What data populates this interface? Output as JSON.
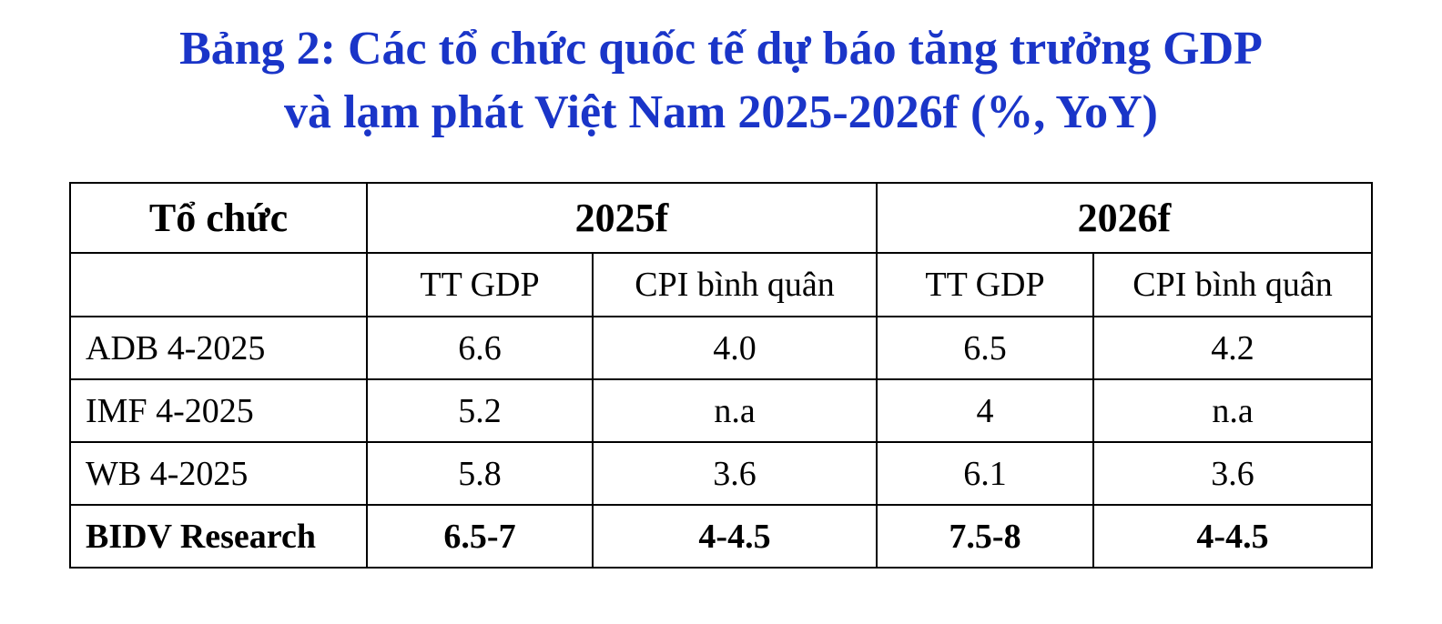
{
  "title": [
    "Bảng 2: Các tổ chức quốc tế dự báo tăng trưởng GDP",
    "và lạm phát Việt Nam 2025-2026f (%, YoY)"
  ],
  "table": {
    "header": [
      "Tổ chức",
      "2025f",
      "2026f"
    ],
    "subheader": [
      "TT GDP",
      "CPI bình quân",
      "TT GDP",
      "CPI bình quân"
    ],
    "rows": [
      [
        "ADB 4-2025",
        "6.6",
        "4.0",
        "6.5",
        "4.2"
      ],
      [
        "IMF 4-2025",
        "5.2",
        "n.a",
        "4",
        "n.a"
      ],
      [
        "WB 4-2025",
        "5.8",
        "3.6",
        "6.1",
        "3.6"
      ],
      [
        "BIDV Research",
        "6.5-7",
        "4-4.5",
        "7.5-8",
        "4-4.5"
      ]
    ]
  }
}
